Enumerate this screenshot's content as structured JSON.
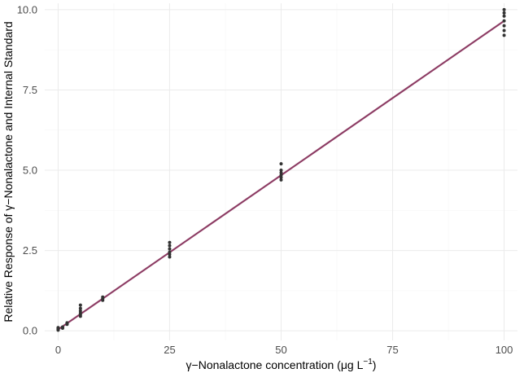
{
  "chart_data": {
    "type": "scatter",
    "title": "",
    "xlabel": "γ−Nonalactone concentration (μg L",
    "xlabel_superscript": "−1",
    "xlabel_suffix": ")",
    "ylabel": "Relative Response of γ−Nonalactone and Internal Standard",
    "xlim": [
      -3,
      103
    ],
    "ylim": [
      -0.3,
      10.2
    ],
    "x_ticks": [
      0,
      25,
      50,
      75,
      100
    ],
    "x_tick_labels": [
      "0",
      "25",
      "50",
      "75",
      "100"
    ],
    "y_ticks": [
      0.0,
      2.5,
      5.0,
      7.5,
      10.0
    ],
    "y_tick_labels": [
      "0.0",
      "2.5",
      "5.0",
      "7.5",
      "10.0"
    ],
    "x_minor_ticks": [
      12.5,
      37.5,
      62.5,
      87.5
    ],
    "y_minor_ticks": [
      1.25,
      3.75,
      6.25,
      8.75
    ],
    "grid": true,
    "legend": "none",
    "points": [
      {
        "x": 0,
        "y": 0.02
      },
      {
        "x": 0,
        "y": 0.04
      },
      {
        "x": 0,
        "y": 0.06
      },
      {
        "x": 0,
        "y": 0.08
      },
      {
        "x": 0,
        "y": 0.1
      },
      {
        "x": 1,
        "y": 0.08
      },
      {
        "x": 1,
        "y": 0.1
      },
      {
        "x": 1,
        "y": 0.12
      },
      {
        "x": 2,
        "y": 0.2
      },
      {
        "x": 2,
        "y": 0.22
      },
      {
        "x": 2,
        "y": 0.25
      },
      {
        "x": 5,
        "y": 0.45
      },
      {
        "x": 5,
        "y": 0.5
      },
      {
        "x": 5,
        "y": 0.55
      },
      {
        "x": 5,
        "y": 0.62
      },
      {
        "x": 5,
        "y": 0.7
      },
      {
        "x": 5,
        "y": 0.8
      },
      {
        "x": 10,
        "y": 0.95
      },
      {
        "x": 10,
        "y": 1.0
      },
      {
        "x": 10,
        "y": 1.05
      },
      {
        "x": 25,
        "y": 2.3
      },
      {
        "x": 25,
        "y": 2.38
      },
      {
        "x": 25,
        "y": 2.45
      },
      {
        "x": 25,
        "y": 2.55
      },
      {
        "x": 25,
        "y": 2.65
      },
      {
        "x": 25,
        "y": 2.75
      },
      {
        "x": 50,
        "y": 4.7
      },
      {
        "x": 50,
        "y": 4.78
      },
      {
        "x": 50,
        "y": 4.85
      },
      {
        "x": 50,
        "y": 4.92
      },
      {
        "x": 50,
        "y": 5.0
      },
      {
        "x": 50,
        "y": 5.2
      },
      {
        "x": 100,
        "y": 9.2
      },
      {
        "x": 100,
        "y": 9.35
      },
      {
        "x": 100,
        "y": 9.5
      },
      {
        "x": 100,
        "y": 9.65
      },
      {
        "x": 100,
        "y": 9.8
      },
      {
        "x": 100,
        "y": 9.9
      },
      {
        "x": 100,
        "y": 10.0
      }
    ],
    "fit": {
      "type": "linear",
      "x": [
        0,
        100
      ],
      "y": [
        0.04,
        9.65
      ],
      "band_halfwidth": 0.04
    },
    "colors": {
      "points": "#333333",
      "fit_line": "#8b3a62",
      "fit_band": "#c48aa4"
    }
  }
}
